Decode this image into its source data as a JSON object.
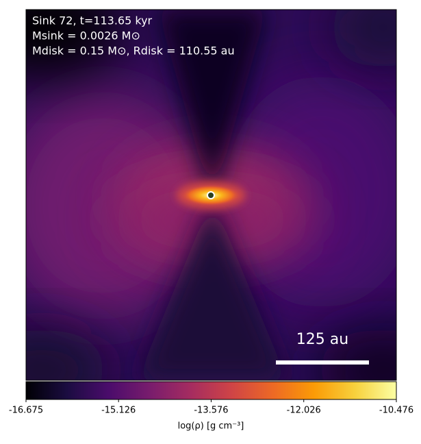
{
  "chart_data": {
    "type": "image",
    "annotations": [
      "Sink 72, t=113.65 kyr",
      "Msink = 0.0026 M⊙",
      "Mdisk = 0.15 M⊙, Rdisk = 110.55 au"
    ],
    "scale_bar_label": "125 au",
    "colorbar_label": "log(ρ) [g cm⁻³]",
    "colormap": "inferno",
    "clim": [
      -16.675,
      -10.476
    ],
    "cticks": [
      -16.675,
      -15.126,
      -13.576,
      -12.026,
      -10.476
    ]
  }
}
